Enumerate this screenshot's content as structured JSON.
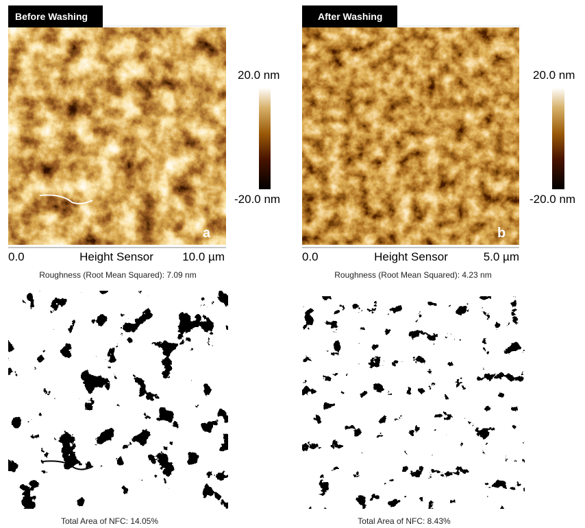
{
  "panels": [
    {
      "title": "Before Washing",
      "letter": "a",
      "colorbar": {
        "max": "20.0 nm",
        "min": "-20.0 nm"
      },
      "scale": {
        "start": "0.0",
        "name": "Height Sensor",
        "end": "10.0 µm"
      },
      "roughness": "Roughness (Root Mean Squared): 7.09 nm",
      "area": "Total Area of NFC: 14.05%"
    },
    {
      "title": "After Washing",
      "letter": "b",
      "colorbar": {
        "max": "20.0 nm",
        "min": "-20.0 nm"
      },
      "scale": {
        "start": "0.0",
        "name": "Height Sensor",
        "end": "5.0 µm"
      },
      "roughness": "Roughness (Root Mean Squared): 4.23 nm",
      "area": "Total Area of NFC: 8.43%"
    }
  ]
}
